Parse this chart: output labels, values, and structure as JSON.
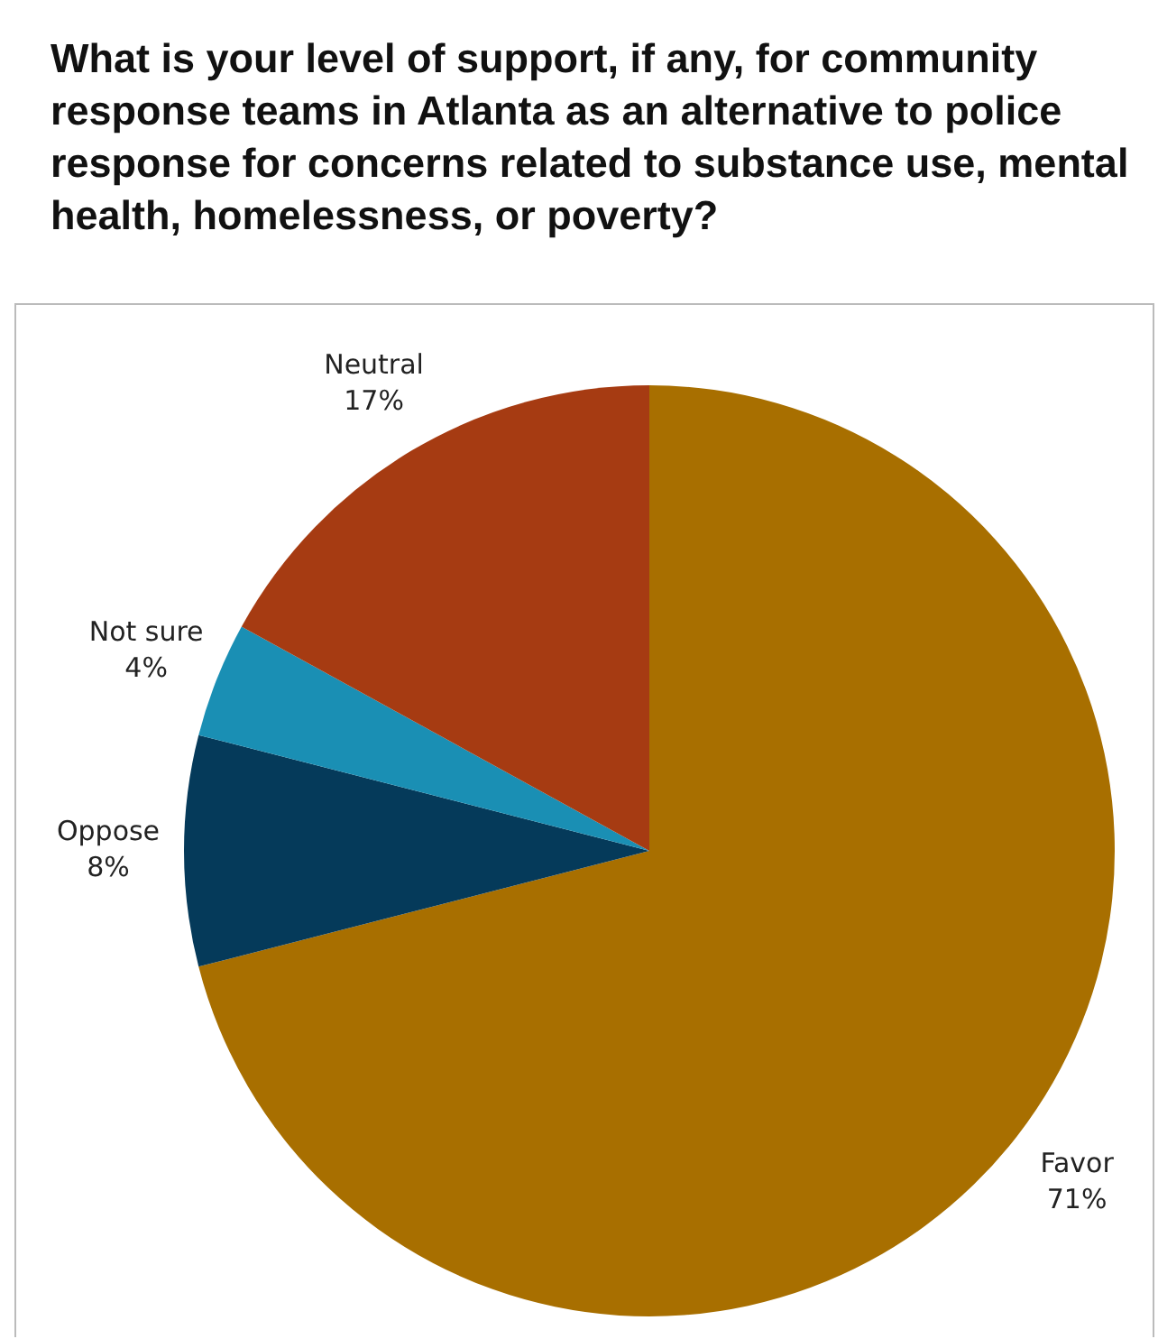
{
  "chart_data": {
    "type": "pie",
    "title": "What is your level of support, if any, for community response teams in Atlanta as an alternative to police response for concerns related to substance use, mental health, homelessness, or poverty?",
    "categories": [
      "Favor",
      "Oppose",
      "Not sure",
      "Neutral"
    ],
    "values": [
      71,
      8,
      4,
      17
    ],
    "value_labels": [
      "71%",
      "8%",
      "4%",
      "17%"
    ],
    "colors": [
      "#a86f00",
      "#053a5a",
      "#1a8fb4",
      "#a63b12"
    ],
    "legend": false
  }
}
